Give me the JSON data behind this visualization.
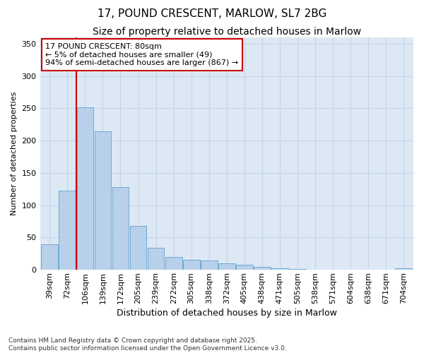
{
  "title": "17, POUND CRESCENT, MARLOW, SL7 2BG",
  "subtitle": "Size of property relative to detached houses in Marlow",
  "xlabel": "Distribution of detached houses by size in Marlow",
  "ylabel": "Number of detached properties",
  "footnote": "Contains HM Land Registry data © Crown copyright and database right 2025.\nContains public sector information licensed under the Open Government Licence v3.0.",
  "bin_labels": [
    "39sqm",
    "72sqm",
    "106sqm",
    "139sqm",
    "172sqm",
    "205sqm",
    "239sqm",
    "272sqm",
    "305sqm",
    "338sqm",
    "372sqm",
    "405sqm",
    "438sqm",
    "471sqm",
    "505sqm",
    "538sqm",
    "571sqm",
    "604sqm",
    "638sqm",
    "671sqm",
    "704sqm"
  ],
  "bar_values": [
    40,
    122,
    251,
    214,
    128,
    68,
    34,
    20,
    15,
    14,
    10,
    8,
    5,
    2,
    1,
    0,
    0,
    0,
    0,
    0,
    2
  ],
  "bar_color": "#b8d0ea",
  "bar_edge_color": "#6faad4",
  "grid_color": "#c5d5e8",
  "background_color": "#dde8f5",
  "property_line_x": 1.5,
  "property_line_color": "#cc0000",
  "annotation_text": "17 POUND CRESCENT: 80sqm\n← 5% of detached houses are smaller (49)\n94% of semi-detached houses are larger (867) →",
  "annotation_box_color": "#cc0000",
  "ylim": [
    0,
    360
  ],
  "yticks": [
    0,
    50,
    100,
    150,
    200,
    250,
    300,
    350
  ],
  "title_fontsize": 11,
  "subtitle_fontsize": 10,
  "xlabel_fontsize": 9,
  "ylabel_fontsize": 8,
  "tick_fontsize": 8,
  "annotation_fontsize": 8
}
